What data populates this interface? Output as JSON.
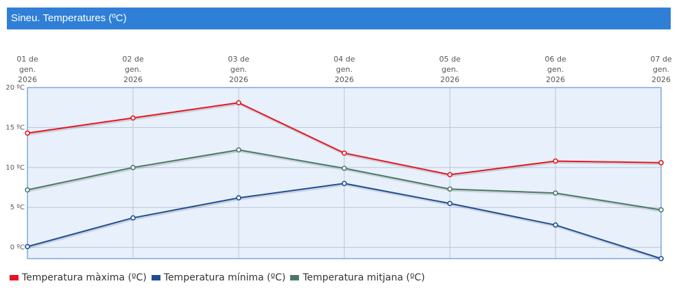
{
  "chart_data": {
    "type": "line",
    "title": "Sineu. Temperatures (ºC)",
    "categories": [
      [
        "01 de",
        "gen.",
        "2026"
      ],
      [
        "02 de",
        "gen.",
        "2026"
      ],
      [
        "03 de",
        "gen.",
        "2026"
      ],
      [
        "04 de",
        "gen.",
        "2026"
      ],
      [
        "05 de",
        "gen.",
        "2026"
      ],
      [
        "06 de",
        "gen.",
        "2026"
      ],
      [
        "07 de",
        "gen.",
        "2026"
      ]
    ],
    "yticks": [
      0,
      5,
      10,
      15,
      20
    ],
    "ytick_labels": [
      "0 ºC",
      "5 ºC",
      "10 ºC",
      "15 ºC",
      "20 ºC"
    ],
    "ylim": [
      -1.4,
      20
    ],
    "grid": true,
    "legend_position": "bottom-left",
    "series": [
      {
        "name": "Temperatura màxima (ºC)",
        "color": "#e8141e",
        "values": [
          14.3,
          16.2,
          18.1,
          11.8,
          9.1,
          10.8,
          10.6
        ]
      },
      {
        "name": "Temperatura mínima (ºC)",
        "color": "#1f4e96",
        "values": [
          0.1,
          3.7,
          6.2,
          8.0,
          5.5,
          2.8,
          -1.4
        ]
      },
      {
        "name": "Temperatura mitjana (ºC)",
        "color": "#4a7a66",
        "values": [
          7.2,
          10.0,
          12.2,
          9.9,
          7.3,
          6.8,
          4.7
        ]
      }
    ]
  }
}
